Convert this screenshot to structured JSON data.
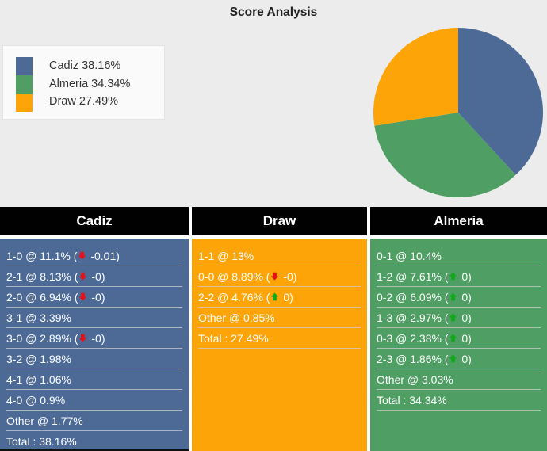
{
  "page": {
    "title": "Score Analysis",
    "background": "#ececec"
  },
  "colors": {
    "cadiz_blue": "#4d6a97",
    "almeria_green": "#4f9e64",
    "draw_orange": "#fda408",
    "header_black": "#010101",
    "increase_green": "#11a81b",
    "decrease_red": "#e41218",
    "row_text": "#ffffff"
  },
  "legend": {
    "items": [
      {
        "label": "Cadiz 38.16%",
        "color": "#4d6a97"
      },
      {
        "label": "Almeria 34.34%",
        "color": "#4f9e64"
      },
      {
        "label": "Draw 27.49%",
        "color": "#fda408"
      }
    ]
  },
  "chart_data": {
    "type": "pie",
    "title": "Score Analysis",
    "labels": [
      "Cadiz",
      "Almeria",
      "Draw"
    ],
    "values": [
      38.16,
      34.34,
      27.49
    ],
    "colors": [
      "#4d6a97",
      "#4f9e64",
      "#fda408"
    ],
    "start_angle_deg": 0,
    "direction": "clockwise",
    "legend_position": "upper-left"
  },
  "tables": [
    {
      "header": "Cadiz",
      "body_color": "#4d6a97",
      "rows": [
        {
          "text": "1-0 @ 11.1%",
          "change_dir": "down",
          "change_value": "-0.01"
        },
        {
          "text": "2-1 @ 8.13%",
          "change_dir": "down",
          "change_value": "-0"
        },
        {
          "text": "2-0 @ 6.94%",
          "change_dir": "down",
          "change_value": "-0"
        },
        {
          "text": "3-1 @ 3.39%",
          "change_dir": null,
          "change_value": null
        },
        {
          "text": "3-0 @ 2.89%",
          "change_dir": "down",
          "change_value": "-0"
        },
        {
          "text": "3-2 @ 1.98%",
          "change_dir": null,
          "change_value": null
        },
        {
          "text": "4-1 @ 1.06%",
          "change_dir": null,
          "change_value": null
        },
        {
          "text": "4-0 @ 0.9%",
          "change_dir": null,
          "change_value": null
        },
        {
          "text": "Other @ 1.77%",
          "change_dir": null,
          "change_value": null
        },
        {
          "text": "Total : 38.16%",
          "change_dir": null,
          "change_value": null
        }
      ]
    },
    {
      "header": "Draw",
      "body_color": "#fda408",
      "rows": [
        {
          "text": "1-1 @ 13%",
          "change_dir": null,
          "change_value": null
        },
        {
          "text": "0-0 @ 8.89%",
          "change_dir": "down",
          "change_value": "-0"
        },
        {
          "text": "2-2 @ 4.76%",
          "change_dir": "up",
          "change_value": "0"
        },
        {
          "text": "Other @ 0.85%",
          "change_dir": null,
          "change_value": null
        },
        {
          "text": "Total : 27.49%",
          "change_dir": null,
          "change_value": null
        }
      ]
    },
    {
      "header": "Almeria",
      "body_color": "#4f9e64",
      "rows": [
        {
          "text": "0-1 @ 10.4%",
          "change_dir": null,
          "change_value": null
        },
        {
          "text": "1-2 @ 7.61%",
          "change_dir": "up",
          "change_value": "0"
        },
        {
          "text": "0-2 @ 6.09%",
          "change_dir": "up",
          "change_value": "0"
        },
        {
          "text": "1-3 @ 2.97%",
          "change_dir": "up",
          "change_value": "0"
        },
        {
          "text": "0-3 @ 2.38%",
          "change_dir": "up",
          "change_value": "0"
        },
        {
          "text": "2-3 @ 1.86%",
          "change_dir": "up",
          "change_value": "0"
        },
        {
          "text": "Other @ 3.03%",
          "change_dir": null,
          "change_value": null
        },
        {
          "text": "Total : 34.34%",
          "change_dir": null,
          "change_value": null
        }
      ]
    }
  ]
}
